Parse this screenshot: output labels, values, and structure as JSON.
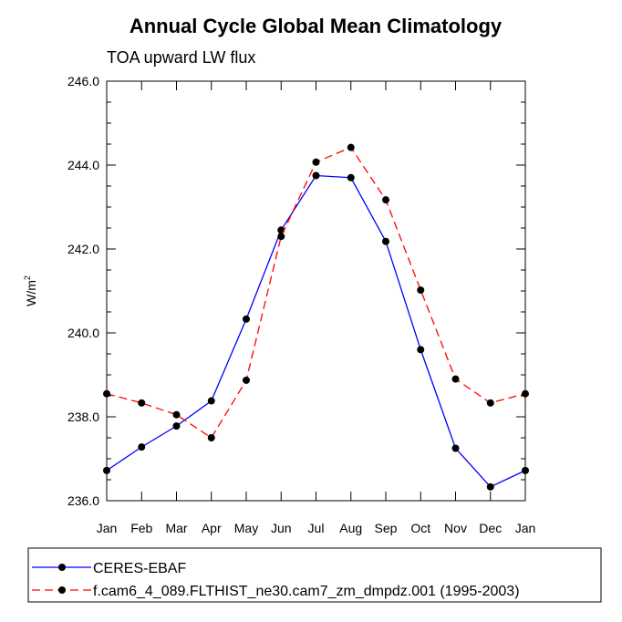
{
  "chart_data": {
    "type": "line",
    "title": "Annual Cycle Global Mean Climatology",
    "subtitle": "TOA upward LW flux",
    "ylabel": "W/m",
    "ylabel_sup": "2",
    "ylim": [
      236.0,
      246.0
    ],
    "yticks": [
      "236.0",
      "238.0",
      "240.0",
      "242.0",
      "244.0",
      "246.0"
    ],
    "categories": [
      "Jan",
      "Feb",
      "Mar",
      "Apr",
      "May",
      "Jun",
      "Jul",
      "Aug",
      "Sep",
      "Oct",
      "Nov",
      "Dec",
      "Jan"
    ],
    "grid": false,
    "legend_placement": "bottom",
    "series": [
      {
        "name": "CERES-EBAF",
        "color": "#0000ff",
        "dash": "solid",
        "values": [
          236.72,
          237.28,
          237.78,
          238.38,
          240.33,
          242.45,
          243.75,
          243.7,
          242.18,
          239.6,
          237.25,
          236.33,
          236.72
        ]
      },
      {
        "name": "f.cam6_4_089.FLTHIST_ne30.cam7_zm_dmpdz.001 (1995-2003)",
        "color": "#ff0000",
        "dash": "dashed",
        "values": [
          238.55,
          238.33,
          238.05,
          237.5,
          238.87,
          242.3,
          244.07,
          244.42,
          243.17,
          241.02,
          238.9,
          238.33,
          238.55
        ]
      }
    ]
  }
}
